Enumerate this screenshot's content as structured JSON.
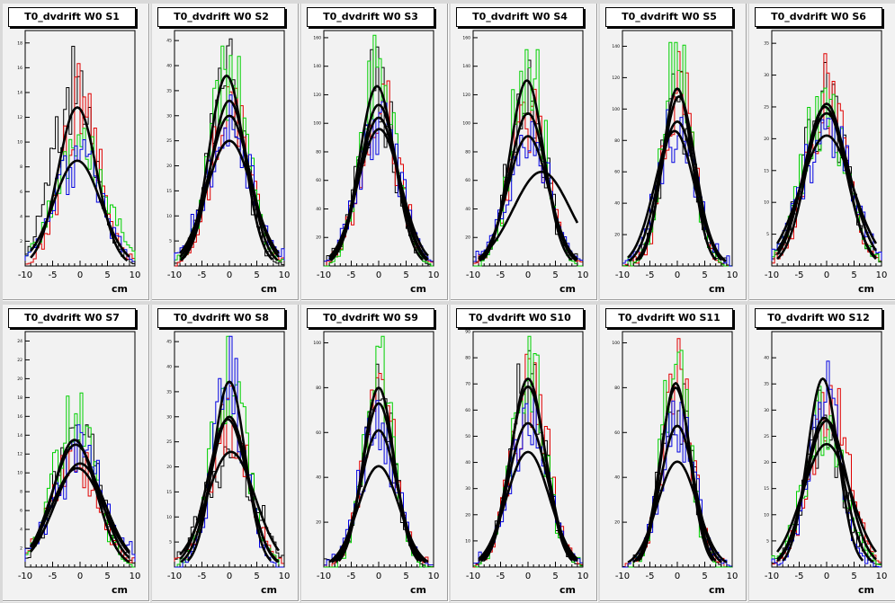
{
  "colors": {
    "red": "#e00000",
    "green": "#00d000",
    "blue": "#0000e0",
    "black": "#000000",
    "fit": "#000000",
    "frame": "#f2f2f2"
  },
  "chart_data": [
    {
      "type": "histogram",
      "title": "T0_dvdrift W0 S1",
      "xlabel": "cm",
      "xlim": [
        -10,
        10
      ],
      "ylim": [
        0,
        19
      ],
      "yticks": [
        2,
        4,
        6,
        8,
        10,
        12,
        14,
        16,
        18
      ],
      "fits": [
        {
          "amp": 12.8,
          "mean": -0.5,
          "sigma": 3.5
        },
        {
          "amp": 8.5,
          "mean": -0.5,
          "sigma": 4.3
        }
      ],
      "series": [
        {
          "color": "black",
          "amp": 14,
          "mean": -1.2,
          "sigma": 3.8
        },
        {
          "color": "red",
          "amp": 13,
          "mean": 0.2,
          "sigma": 3.4
        },
        {
          "color": "green",
          "amp": 9,
          "mean": 0,
          "sigma": 4.6
        },
        {
          "color": "blue",
          "amp": 8.5,
          "mean": -0.4,
          "sigma": 4.2
        }
      ]
    },
    {
      "type": "histogram",
      "title": "T0_dvdrift W0 S2",
      "xlabel": "cm",
      "xlim": [
        -10,
        10
      ],
      "ylim": [
        0,
        47
      ],
      "yticks": [
        5,
        10,
        15,
        20,
        25,
        30,
        35,
        40,
        45
      ],
      "fits": [
        {
          "amp": 38,
          "mean": -0.5,
          "sigma": 3.2
        },
        {
          "amp": 33,
          "mean": 0,
          "sigma": 3.4
        },
        {
          "amp": 30,
          "mean": 0,
          "sigma": 3.8
        },
        {
          "amp": 25,
          "mean": 0,
          "sigma": 4.2
        }
      ],
      "series": [
        {
          "color": "black",
          "amp": 38,
          "mean": -0.6,
          "sigma": 3.2
        },
        {
          "color": "red",
          "amp": 33,
          "mean": 0.3,
          "sigma": 3.4
        },
        {
          "color": "green",
          "amp": 40,
          "mean": 0,
          "sigma": 3.3
        },
        {
          "color": "blue",
          "amp": 27,
          "mean": 0,
          "sigma": 4.1
        }
      ]
    },
    {
      "type": "histogram",
      "title": "T0_dvdrift W0 S3",
      "xlabel": "cm",
      "xlim": [
        -10,
        10
      ],
      "ylim": [
        0,
        165
      ],
      "yticks": [
        20,
        40,
        60,
        80,
        100,
        120,
        140,
        160
      ],
      "fits": [
        {
          "amp": 126,
          "mean": -0.3,
          "sigma": 3.2
        },
        {
          "amp": 113,
          "mean": 0,
          "sigma": 3.4
        },
        {
          "amp": 104,
          "mean": 0,
          "sigma": 3.6
        },
        {
          "amp": 96,
          "mean": 0.1,
          "sigma": 3.9
        }
      ],
      "series": [
        {
          "color": "black",
          "amp": 126,
          "mean": -0.3,
          "sigma": 3.2
        },
        {
          "color": "red",
          "amp": 113,
          "mean": 0.2,
          "sigma": 3.4
        },
        {
          "color": "green",
          "amp": 135,
          "mean": 0,
          "sigma": 3.1
        },
        {
          "color": "blue",
          "amp": 100,
          "mean": 0,
          "sigma": 3.8
        }
      ]
    },
    {
      "type": "histogram",
      "title": "T0_dvdrift W0 S4",
      "xlabel": "cm",
      "xlim": [
        -10,
        10
      ],
      "ylim": [
        0,
        165
      ],
      "yticks": [
        20,
        40,
        60,
        80,
        100,
        120,
        140,
        160
      ],
      "fits": [
        {
          "amp": 130,
          "mean": -0.2,
          "sigma": 3.1
        },
        {
          "amp": 107,
          "mean": 0,
          "sigma": 3.4
        },
        {
          "amp": 91,
          "mean": 0,
          "sigma": 3.7
        },
        {
          "amp": 66,
          "mean": 2.5,
          "sigma": 5.2
        }
      ],
      "series": [
        {
          "color": "black",
          "amp": 128,
          "mean": -0.2,
          "sigma": 3.2
        },
        {
          "color": "red",
          "amp": 107,
          "mean": 0.2,
          "sigma": 3.4
        },
        {
          "color": "green",
          "amp": 150,
          "mean": 0,
          "sigma": 2.9
        },
        {
          "color": "blue",
          "amp": 90,
          "mean": 0,
          "sigma": 3.8
        }
      ]
    },
    {
      "type": "histogram",
      "title": "T0_dvdrift W0 S5",
      "xlabel": "cm",
      "xlim": [
        -10,
        10
      ],
      "ylim": [
        0,
        150
      ],
      "yticks": [
        20,
        40,
        60,
        80,
        100,
        120,
        140
      ],
      "fits": [
        {
          "amp": 113,
          "mean": 0,
          "sigma": 2.7
        },
        {
          "amp": 108,
          "mean": 0.3,
          "sigma": 3
        },
        {
          "amp": 92,
          "mean": 0,
          "sigma": 3.4
        },
        {
          "amp": 86,
          "mean": -0.5,
          "sigma": 3.6
        }
      ],
      "series": [
        {
          "color": "black",
          "amp": 108,
          "mean": 0,
          "sigma": 2.8
        },
        {
          "color": "red",
          "amp": 120,
          "mean": 0.3,
          "sigma": 2.6
        },
        {
          "color": "green",
          "amp": 125,
          "mean": 0,
          "sigma": 2.7
        },
        {
          "color": "blue",
          "amp": 88,
          "mean": -0.3,
          "sigma": 3.4
        }
      ]
    },
    {
      "type": "histogram",
      "title": "T0_dvdrift W0 S6",
      "xlabel": "cm",
      "xlim": [
        -10,
        10
      ],
      "ylim": [
        0,
        37
      ],
      "yticks": [
        5,
        10,
        15,
        20,
        25,
        30,
        35
      ],
      "fits": [
        {
          "amp": 25.5,
          "mean": 0,
          "sigma": 3.6
        },
        {
          "amp": 25,
          "mean": -0.3,
          "sigma": 3.8
        },
        {
          "amp": 24,
          "mean": 0,
          "sigma": 4.2
        },
        {
          "amp": 20.5,
          "mean": 0,
          "sigma": 4.8
        }
      ],
      "series": [
        {
          "color": "black",
          "amp": 26,
          "mean": -0.3,
          "sigma": 3.8
        },
        {
          "color": "red",
          "amp": 27,
          "mean": 0.2,
          "sigma": 3.5
        },
        {
          "color": "green",
          "amp": 25,
          "mean": -0.5,
          "sigma": 3.9
        },
        {
          "color": "blue",
          "amp": 21,
          "mean": 0,
          "sigma": 4.6
        }
      ]
    },
    {
      "type": "histogram",
      "title": "T0_dvdrift W0 S7",
      "xlabel": "cm",
      "xlim": [
        -10,
        10
      ],
      "ylim": [
        0,
        25
      ],
      "yticks": [
        2,
        4,
        6,
        8,
        10,
        12,
        14,
        16,
        18,
        20,
        22,
        24
      ],
      "fits": [
        {
          "amp": 13.5,
          "mean": -1.0,
          "sigma": 3.9
        },
        {
          "amp": 13,
          "mean": -0.8,
          "sigma": 4.3
        },
        {
          "amp": 11,
          "mean": 0,
          "sigma": 4.6
        },
        {
          "amp": 10.5,
          "mean": -0.5,
          "sigma": 4.8
        }
      ],
      "series": [
        {
          "color": "black",
          "amp": 14,
          "mean": -0.5,
          "sigma": 4.0
        },
        {
          "color": "red",
          "amp": 11,
          "mean": -1.2,
          "sigma": 4.3
        },
        {
          "color": "green",
          "amp": 16,
          "mean": -1,
          "sigma": 3.6
        },
        {
          "color": "blue",
          "amp": 12,
          "mean": 0,
          "sigma": 4.6
        }
      ]
    },
    {
      "type": "histogram",
      "title": "T0_dvdrift W0 S8",
      "xlabel": "cm",
      "xlim": [
        -10,
        10
      ],
      "ylim": [
        0,
        47
      ],
      "yticks": [
        5,
        10,
        15,
        20,
        25,
        30,
        35,
        40,
        45
      ],
      "fits": [
        {
          "amp": 37,
          "mean": 0,
          "sigma": 2.9
        },
        {
          "amp": 30,
          "mean": 0,
          "sigma": 3.4
        },
        {
          "amp": 29.5,
          "mean": -0.3,
          "sigma": 3.6
        },
        {
          "amp": 23,
          "mean": 0.3,
          "sigma": 4.4
        }
      ],
      "series": [
        {
          "color": "black",
          "amp": 23,
          "mean": 0.2,
          "sigma": 4.3
        },
        {
          "color": "red",
          "amp": 30,
          "mean": 0.2,
          "sigma": 3.5
        },
        {
          "color": "green",
          "amp": 38,
          "mean": 0,
          "sigma": 3.1
        },
        {
          "color": "blue",
          "amp": 37,
          "mean": 0,
          "sigma": 2.9
        }
      ]
    },
    {
      "type": "histogram",
      "title": "T0_dvdrift W0 S9",
      "xlabel": "cm",
      "xlim": [
        -10,
        10
      ],
      "ylim": [
        0,
        105
      ],
      "yticks": [
        20,
        40,
        60,
        80,
        100
      ],
      "fits": [
        {
          "amp": 80,
          "mean": 0,
          "sigma": 2.8
        },
        {
          "amp": 73,
          "mean": 0,
          "sigma": 3
        },
        {
          "amp": 61,
          "mean": 0,
          "sigma": 3.3
        },
        {
          "amp": 45,
          "mean": 0,
          "sigma": 3.7
        }
      ],
      "series": [
        {
          "color": "black",
          "amp": 79,
          "mean": 0,
          "sigma": 2.8
        },
        {
          "color": "red",
          "amp": 75,
          "mean": 0.3,
          "sigma": 3
        },
        {
          "color": "green",
          "amp": 88,
          "mean": 0,
          "sigma": 2.6
        },
        {
          "color": "blue",
          "amp": 62,
          "mean": 0,
          "sigma": 3.3
        }
      ]
    },
    {
      "type": "histogram",
      "title": "T0_dvdrift W0 S10",
      "xlabel": "cm",
      "xlim": [
        -10,
        10
      ],
      "ylim": [
        0,
        90
      ],
      "yticks": [
        10,
        20,
        30,
        40,
        50,
        60,
        70,
        80,
        90
      ],
      "fits": [
        {
          "amp": 72,
          "mean": 0,
          "sigma": 3.1
        },
        {
          "amp": 69,
          "mean": 0,
          "sigma": 3.3
        },
        {
          "amp": 55,
          "mean": 0,
          "sigma": 3.6
        },
        {
          "amp": 44,
          "mean": 0,
          "sigma": 3.9
        }
      ],
      "series": [
        {
          "color": "black",
          "amp": 70,
          "mean": 0,
          "sigma": 3.2
        },
        {
          "color": "red",
          "amp": 68,
          "mean": 0.3,
          "sigma": 3.3
        },
        {
          "color": "green",
          "amp": 78,
          "mean": 0,
          "sigma": 3
        },
        {
          "color": "blue",
          "amp": 55,
          "mean": 0,
          "sigma": 3.6
        }
      ]
    },
    {
      "type": "histogram",
      "title": "T0_dvdrift W0 S11",
      "xlabel": "cm",
      "xlim": [
        -10,
        10
      ],
      "ylim": [
        0,
        105
      ],
      "yticks": [
        20,
        40,
        60,
        80,
        100
      ],
      "fits": [
        {
          "amp": 82,
          "mean": -0.3,
          "sigma": 2.6
        },
        {
          "amp": 80,
          "mean": -0.3,
          "sigma": 2.8
        },
        {
          "amp": 63,
          "mean": 0,
          "sigma": 3.1
        },
        {
          "amp": 47,
          "mean": 0,
          "sigma": 3.6
        }
      ],
      "series": [
        {
          "color": "black",
          "amp": 80,
          "mean": -0.3,
          "sigma": 2.7
        },
        {
          "color": "red",
          "amp": 80,
          "mean": 0,
          "sigma": 2.8
        },
        {
          "color": "green",
          "amp": 95,
          "mean": -0.3,
          "sigma": 2.5
        },
        {
          "color": "blue",
          "amp": 63,
          "mean": 0,
          "sigma": 3.1
        }
      ]
    },
    {
      "type": "histogram",
      "title": "T0_dvdrift W0 S12",
      "xlabel": "cm",
      "xlim": [
        -10,
        10
      ],
      "ylim": [
        0,
        45
      ],
      "yticks": [
        5,
        10,
        15,
        20,
        25,
        30,
        35,
        40
      ],
      "fits": [
        {
          "amp": 36,
          "mean": -0.7,
          "sigma": 2.8
        },
        {
          "amp": 28.5,
          "mean": -0.4,
          "sigma": 3.4
        },
        {
          "amp": 28,
          "mean": 0,
          "sigma": 3.7
        },
        {
          "amp": 23.5,
          "mean": 0,
          "sigma": 4.4
        }
      ],
      "series": [
        {
          "color": "black",
          "amp": 28,
          "mean": -0.5,
          "sigma": 3.4
        },
        {
          "color": "red",
          "amp": 30,
          "mean": 0.5,
          "sigma": 3.6
        },
        {
          "color": "green",
          "amp": 28,
          "mean": -0.5,
          "sigma": 3.6
        },
        {
          "color": "blue",
          "amp": 36,
          "mean": -0.5,
          "sigma": 2.8
        }
      ]
    }
  ]
}
